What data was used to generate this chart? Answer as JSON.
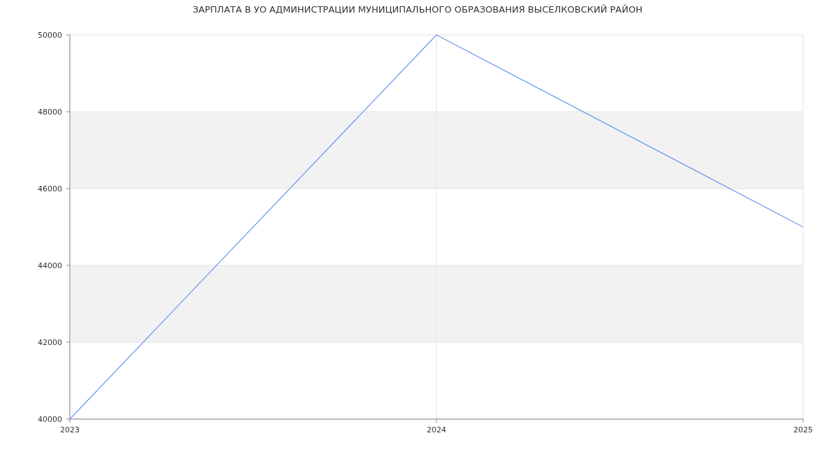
{
  "chart_data": {
    "type": "line",
    "title": "ЗАРПЛАТА В УО АДМИНИСТРАЦИИ МУНИЦИПАЛЬНОГО ОБРАЗОВАНИЯ ВЫСЕЛКОВСКИЙ РАЙОН",
    "x": [
      2023,
      2024,
      2025
    ],
    "series": [
      {
        "color": "#6d9bf1",
        "values": [
          40000,
          50000,
          45000
        ]
      }
    ],
    "xlim": [
      2023,
      2025
    ],
    "xticks": [
      2023,
      2024,
      2025
    ],
    "ylim": [
      40000,
      50000
    ],
    "yticks": [
      40000,
      42000,
      44000,
      46000,
      48000,
      50000
    ],
    "grid": true,
    "marker": "none",
    "line_style": "solid"
  }
}
